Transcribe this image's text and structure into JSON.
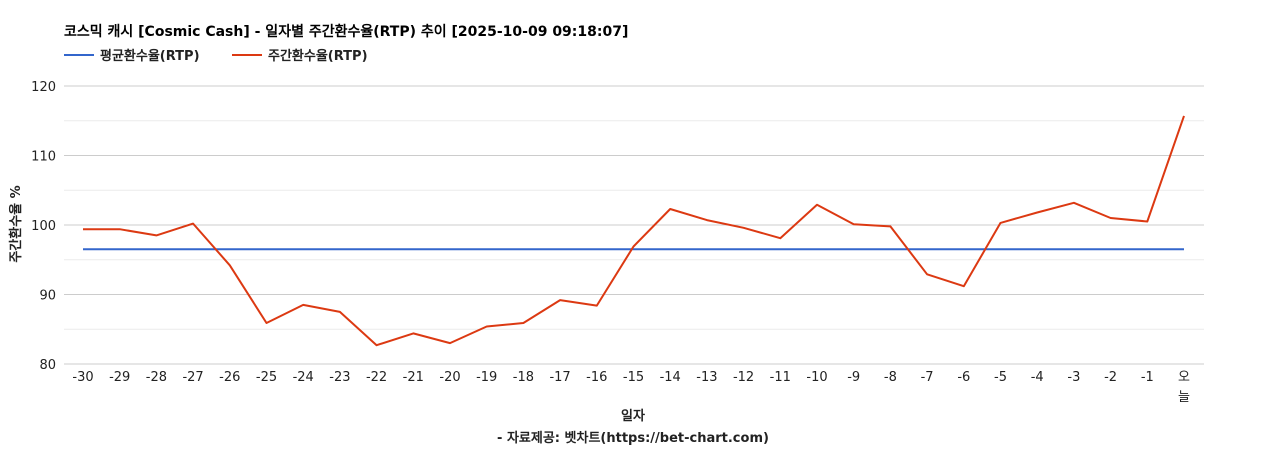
{
  "chart_data": {
    "type": "line",
    "title": "코스믹 캐시 [Cosmic Cash] - 일자별 주간환수율(RTP) 추이 [2025-10-09 09:18:07]",
    "xlabel": "일자",
    "ylabel": "주간환수율 %",
    "credit": "- 자료제공: 벳차트(https://bet-chart.com)",
    "categories": [
      "-30",
      "-29",
      "-28",
      "-27",
      "-26",
      "-25",
      "-24",
      "-23",
      "-22",
      "-21",
      "-20",
      "-19",
      "-18",
      "-17",
      "-16",
      "-15",
      "-14",
      "-13",
      "-12",
      "-11",
      "-10",
      "-9",
      "-8",
      "-7",
      "-6",
      "-5",
      "-4",
      "-3",
      "-2",
      "-1",
      "오늘"
    ],
    "ylim": [
      80,
      120
    ],
    "yticks": [
      "80",
      "90",
      "100",
      "110",
      "120"
    ],
    "grid": true,
    "legend_position": "top-left",
    "series": [
      {
        "name": "평균환수율(RTP)",
        "color": "#3366cc",
        "values": [
          96.5,
          96.5,
          96.5,
          96.5,
          96.5,
          96.5,
          96.5,
          96.5,
          96.5,
          96.5,
          96.5,
          96.5,
          96.5,
          96.5,
          96.5,
          96.5,
          96.5,
          96.5,
          96.5,
          96.5,
          96.5,
          96.5,
          96.5,
          96.5,
          96.5,
          96.5,
          96.5,
          96.5,
          96.5,
          96.5,
          96.5
        ]
      },
      {
        "name": "주간환수율(RTP)",
        "color": "#dc3912",
        "values": [
          99.4,
          99.4,
          98.5,
          100.2,
          94.2,
          85.9,
          88.5,
          87.5,
          82.7,
          84.4,
          83.0,
          85.4,
          85.9,
          89.2,
          88.4,
          96.9,
          102.3,
          100.7,
          99.6,
          98.1,
          102.9,
          100.1,
          99.8,
          92.9,
          91.2,
          100.3,
          101.8,
          103.2,
          101.0,
          100.5,
          115.7
        ]
      }
    ]
  }
}
